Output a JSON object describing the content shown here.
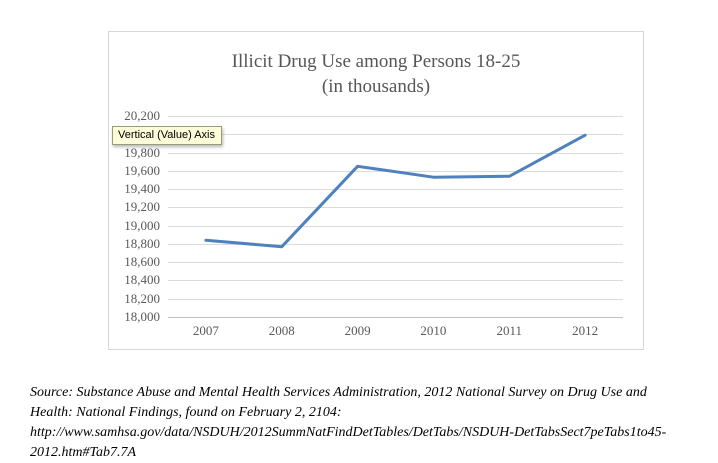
{
  "chart": {
    "title_line1": "Illicit Drug Use among Persons 18-25",
    "title_line2": "(in thousands)"
  },
  "tooltip": {
    "text": "Vertical (Value) Axis",
    "bg_color": "#fcfcd9"
  },
  "chart_data": {
    "type": "line",
    "title": "Illicit Drug Use among Persons 18-25 (in thousands)",
    "categories": [
      "2007",
      "2008",
      "2009",
      "2010",
      "2011",
      "2012"
    ],
    "series": [
      {
        "name": "Illicit drug use among persons 18-25 (thousands)",
        "values": [
          18840,
          18770,
          19650,
          19530,
          19540,
          19990
        ]
      }
    ],
    "xlabel": "",
    "ylabel": "",
    "ylim": [
      18000,
      20200
    ],
    "ytick_step": 200,
    "ytick_labels": [
      "20,200",
      "20,000",
      "19,800",
      "19,600",
      "19,400",
      "19,200",
      "19,000",
      "18,800",
      "18,600",
      "18,400",
      "18,200",
      "18,000"
    ],
    "grid": true,
    "legend_position": "none",
    "line_color": "#4F81BD",
    "grid_color": "#DBDBDB",
    "axis_line_color": "#BFBFBF",
    "text_color": "#595959"
  },
  "source": {
    "lines": [
      "Source: Substance Abuse and Mental Health Services Administration, 2012 National Survey on Drug Use and",
      "Health: National Findings, found on February 2, 2104:",
      "http://www.samhsa.gov/data/NSDUH/2012SummNatFindDetTables/DetTabs/NSDUH-DetTabsSect7peTabs1to45-",
      "2012.htm#Tab7.7A"
    ]
  }
}
